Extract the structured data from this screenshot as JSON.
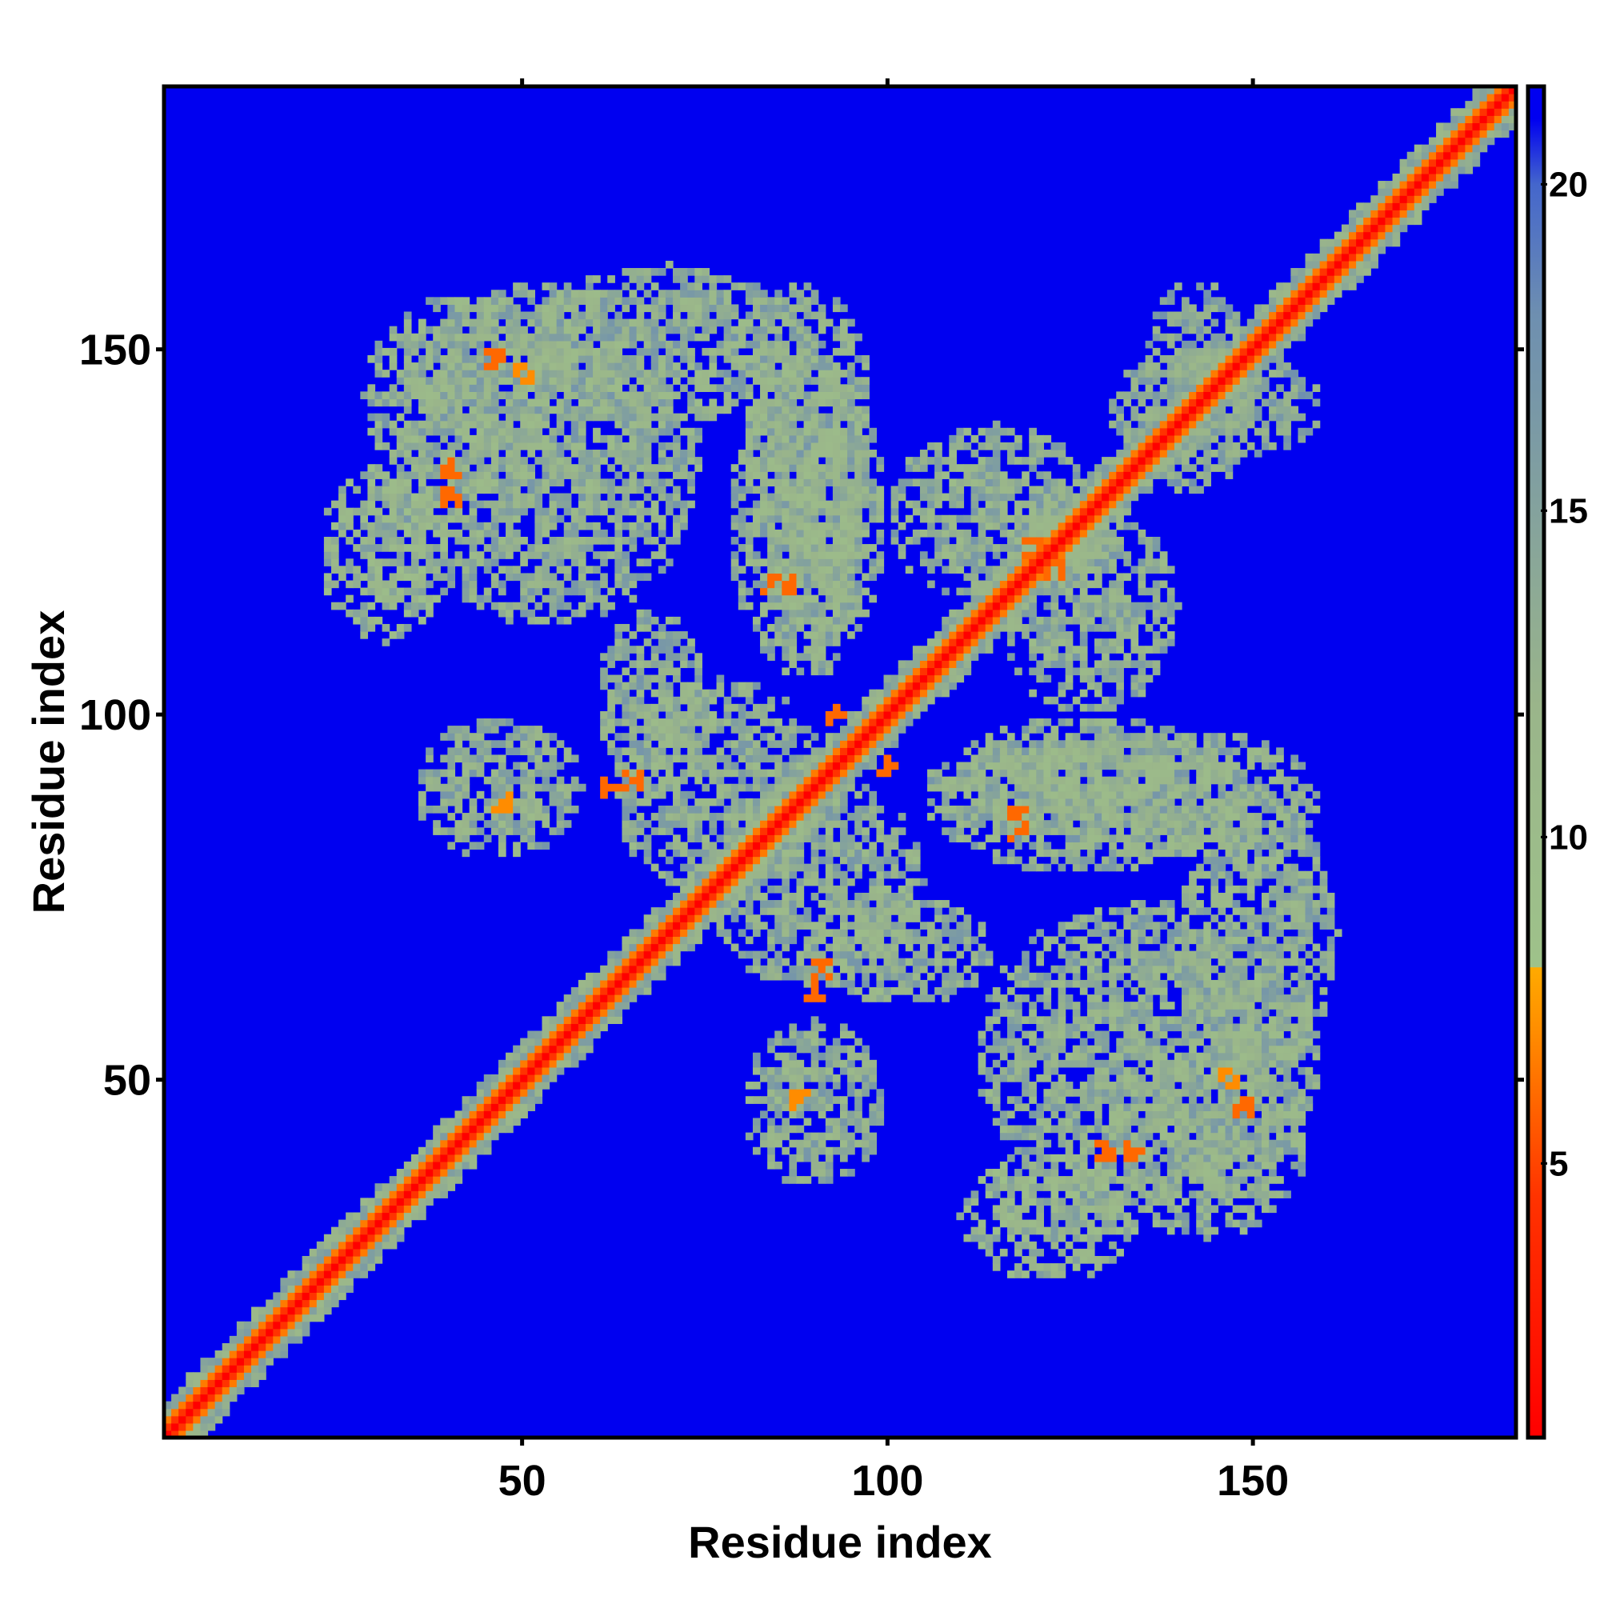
{
  "chart_data": {
    "type": "heatmap",
    "title": "",
    "xlabel": "Residue index",
    "ylabel": "Residue index",
    "xlim": [
      1,
      186
    ],
    "ylim": [
      1,
      186
    ],
    "x_ticks": [
      50,
      100,
      150
    ],
    "y_ticks": [
      50,
      100,
      150
    ],
    "colorbar": {
      "range": [
        0.8,
        21.5
      ],
      "ticks": [
        5,
        10,
        15,
        20
      ],
      "stops": [
        {
          "value": 0.8,
          "color": "#ff0000"
        },
        {
          "value": 4.5,
          "color": "#ff3300"
        },
        {
          "value": 7,
          "color": "#ff8c00"
        },
        {
          "value": 8,
          "color": "#ffaa00"
        },
        {
          "value": 8.01,
          "color": "#9ec28a"
        },
        {
          "value": 12,
          "color": "#9ab58a"
        },
        {
          "value": 18,
          "color": "#6e8fb0"
        },
        {
          "value": 20,
          "color": "#4466cc"
        },
        {
          "value": 21,
          "color": "#0000f0"
        }
      ]
    },
    "background_value": 21.5,
    "background_color": "#0000f0",
    "features": {
      "diagonal": {
        "core": 0.8,
        "near": 4.5,
        "halo_width": 4
      },
      "symmetric_blobs": [
        {
          "i": [
            28,
            56
          ],
          "j": [
            130,
            158
          ],
          "value": 12
        },
        {
          "i": [
            22,
            40
          ],
          "j": [
            110,
            135
          ],
          "value": 11
        },
        {
          "i": [
            35,
            58
          ],
          "j": [
            80,
            100
          ],
          "value": 12
        },
        {
          "i": [
            60,
            75
          ],
          "j": [
            90,
            115
          ],
          "value": 12
        },
        {
          "i": [
            78,
            100
          ],
          "j": [
            105,
            150
          ],
          "value": 12
        },
        {
          "i": [
            80,
            98
          ],
          "j": [
            120,
            160
          ],
          "value": 12
        },
        {
          "i": [
            62,
            92
          ],
          "j": [
            75,
            105
          ],
          "value": 12
        },
        {
          "i": [
            100,
            130
          ],
          "j": [
            115,
            140
          ],
          "value": 12
        },
        {
          "i": [
            110,
            135
          ],
          "j": [
            82,
            98
          ],
          "value": 12
        },
        {
          "i": [
            112,
            160
          ],
          "j": [
            32,
            75
          ],
          "value": 12
        },
        {
          "i": [
            140,
            162
          ],
          "j": [
            50,
            90
          ],
          "value": 12
        },
        {
          "i": [
            130,
            160
          ],
          "j": [
            135,
            150
          ],
          "value": 13
        }
      ],
      "hotspots": [
        {
          "i": 84,
          "j": 118,
          "value": 6
        },
        {
          "i": 93,
          "j": 100,
          "value": 6
        },
        {
          "i": 62,
          "j": 90,
          "value": 6
        },
        {
          "i": 91,
          "j": 65,
          "value": 6
        },
        {
          "i": 120,
          "j": 123,
          "value": 6
        },
        {
          "i": 118,
          "j": 86,
          "value": 6
        },
        {
          "i": 40,
          "j": 134,
          "value": 6
        },
        {
          "i": 46,
          "j": 149,
          "value": 6
        },
        {
          "i": 130,
          "j": 40,
          "value": 6
        },
        {
          "i": 147,
          "j": 50,
          "value": 7
        },
        {
          "i": 88,
          "j": 47,
          "value": 7
        }
      ]
    }
  }
}
